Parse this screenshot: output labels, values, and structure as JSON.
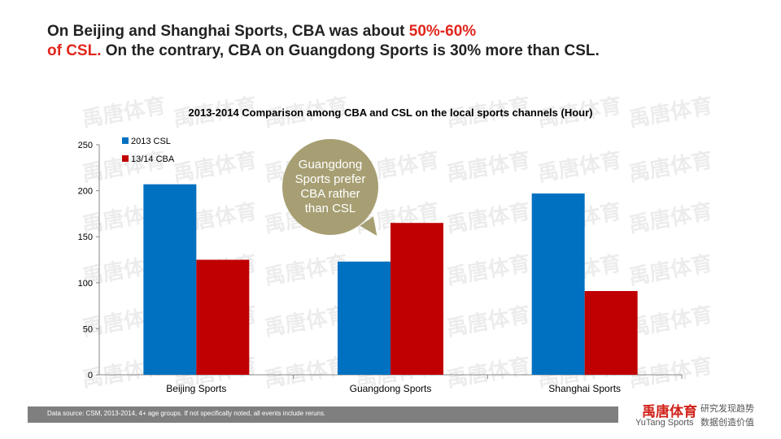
{
  "headline": {
    "part1": "On Beijing and Shanghai Sports, CBA was about ",
    "highlight1": "50%-60%",
    "highlight2": "of CSL.",
    "part2": " On the contrary, CBA on Guangdong Sports is 30% more than CSL."
  },
  "watermark_text": "禹唐体育",
  "chart_data": {
    "type": "bar",
    "title": "2013-2014  Comparison  among  CBA  and  CSL  on  the  local  sports  channels  (Hour)",
    "categories": [
      "Beijing Sports",
      "Guangdong Sports",
      "Shanghai Sports"
    ],
    "series": [
      {
        "name": "2013 CSL",
        "color": "#0070c0",
        "values": [
          207,
          123,
          197
        ]
      },
      {
        "name": "13/14 CBA",
        "color": "#c00000",
        "values": [
          125,
          165,
          91
        ]
      }
    ],
    "yticks": [
      0,
      50,
      100,
      150,
      200,
      250
    ],
    "ylim": [
      0,
      250
    ],
    "legend": "top-left",
    "xlabel": "",
    "ylabel": ""
  },
  "callout": {
    "text": "Guangdong Sports prefer CBA rather than CSL"
  },
  "footer": {
    "source": "Data source: CSM, 2013-2014,  4+ age groups.  If not specifically noted, all events include reruns."
  },
  "brand": {
    "logo_cn": "禹唐体育",
    "logo_en": "YuTang Sports",
    "slogan_line1": "研究发现趋势",
    "slogan_line2": "数据创造价值"
  }
}
